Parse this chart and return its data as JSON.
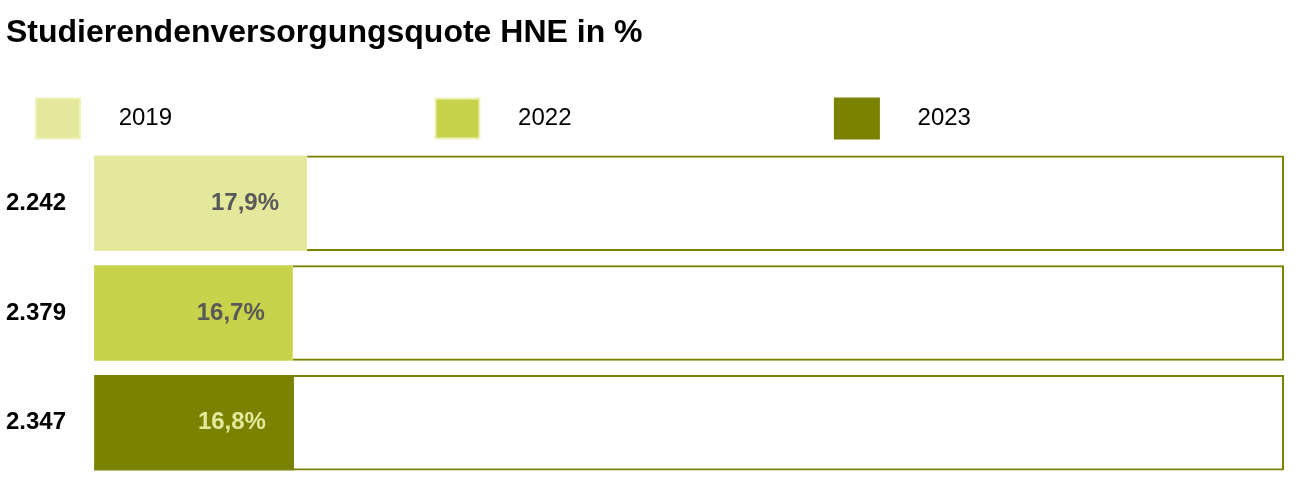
{
  "chart_data": {
    "type": "bar",
    "orientation": "horizontal",
    "stacked": true,
    "title": "Studierendenversorgungsquote HNE in %",
    "categories": [
      "2.242",
      "2.379",
      "2.347"
    ],
    "series": [
      {
        "name": "2019",
        "color": "#e4e89c",
        "values": [
          17.9,
          null,
          null
        ],
        "value_labels": [
          "17,9%",
          null,
          null
        ]
      },
      {
        "name": "2022",
        "color": "#c8d24a",
        "values": [
          null,
          16.7,
          null
        ],
        "value_labels": [
          null,
          "16,7%",
          null
        ]
      },
      {
        "name": "2023",
        "color": "#7a8200",
        "values": [
          null,
          null,
          16.8
        ],
        "value_labels": [
          null,
          null,
          "16,8%"
        ]
      },
      {
        "color": "#7a8200",
        "values": [
          82.1,
          83.3,
          83.2
        ]
      }
    ],
    "xlim": [
      0,
      100
    ],
    "tick_labels": "y",
    "legend": "top left"
  }
}
